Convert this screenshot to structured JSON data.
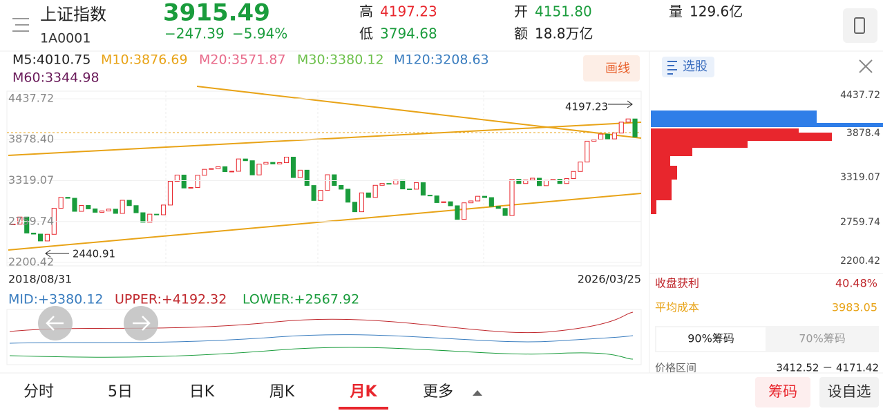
{
  "header": {
    "name": "上证指数",
    "code": "1A0001",
    "price": "3915.49",
    "change": "−247.39",
    "pct": "−5.94%",
    "high_label": "高",
    "high": "4197.23",
    "low_label": "低",
    "low": "3794.68",
    "open_label": "开",
    "open": "4151.80",
    "amount_label": "额",
    "amount": "18.8万亿",
    "volume_label": "量",
    "volume": "129.6亿"
  },
  "ma_legend": [
    "M5:4010.75",
    "M10:3876.69",
    "M20:3571.87",
    "M30:3380.12",
    "M120:3208.63",
    "M60:3344.98"
  ],
  "draw_button": "画线",
  "chart_data": {
    "type": "candlestick",
    "values": [
      2725,
      2821,
      2602,
      2588,
      2494,
      2585,
      2941,
      3091,
      3078,
      2899,
      2979,
      2933,
      2886,
      2905,
      2929,
      2871,
      3050,
      2977,
      2880,
      2750,
      2860,
      2852,
      2985,
      3310,
      3395,
      3218,
      3225,
      3392,
      3473,
      3483,
      3509,
      3441,
      3447,
      3615,
      3591,
      3397,
      3544,
      3568,
      3547,
      3564,
      3640,
      3361,
      3462,
      3252,
      3047,
      3186,
      3399,
      3253,
      3202,
      3024,
      2893,
      3151,
      3089,
      3255,
      3280,
      3273,
      3323,
      3205,
      3202,
      3291,
      3120,
      3110,
      3018,
      3030,
      2975,
      2789,
      3015,
      3041,
      3105,
      3087,
      2967,
      2939,
      2842,
      3336,
      3279,
      3326,
      3352,
      3250,
      3321,
      3336,
      3279,
      3347,
      3444,
      3573,
      3858,
      3883,
      3955,
      3889,
      3969,
      4118,
      4162,
      3915.49
    ],
    "ylim": [
      2200.42,
      4437.72
    ],
    "yticks": [
      4437.72,
      {
        "value": 3878.4,
        "label": "3878.40"
      },
      3319.07,
      2759.74,
      2200.42
    ],
    "start_date": "2018/08/31",
    "end_date": "2026/03/25",
    "high_annotation": "4197.23",
    "low_annotation": "2440.91",
    "up_color": "#e8262d",
    "down_color": "#1a9c3c"
  },
  "boll": [
    "MID:+3380.12",
    "UPPER:+4192.32",
    "LOWER:+2567.92"
  ],
  "chips": {
    "title": "选股",
    "axis": [
      "4437.72",
      "3878.4",
      "3319.07",
      "2759.74",
      "2200.42"
    ],
    "profit_label": "收盘获利",
    "profit": "40.48%",
    "avg_label": "平均成本",
    "avg": "3983.05",
    "tabs": [
      "90%筹码",
      "70%筹码"
    ],
    "range_label": "价格区间",
    "range": "3412.52 － 4171.42"
  },
  "tabs": [
    "分时",
    "5日",
    "日K",
    "周K",
    "月K",
    "更多"
  ],
  "actions": [
    "筹码",
    "设自选"
  ]
}
